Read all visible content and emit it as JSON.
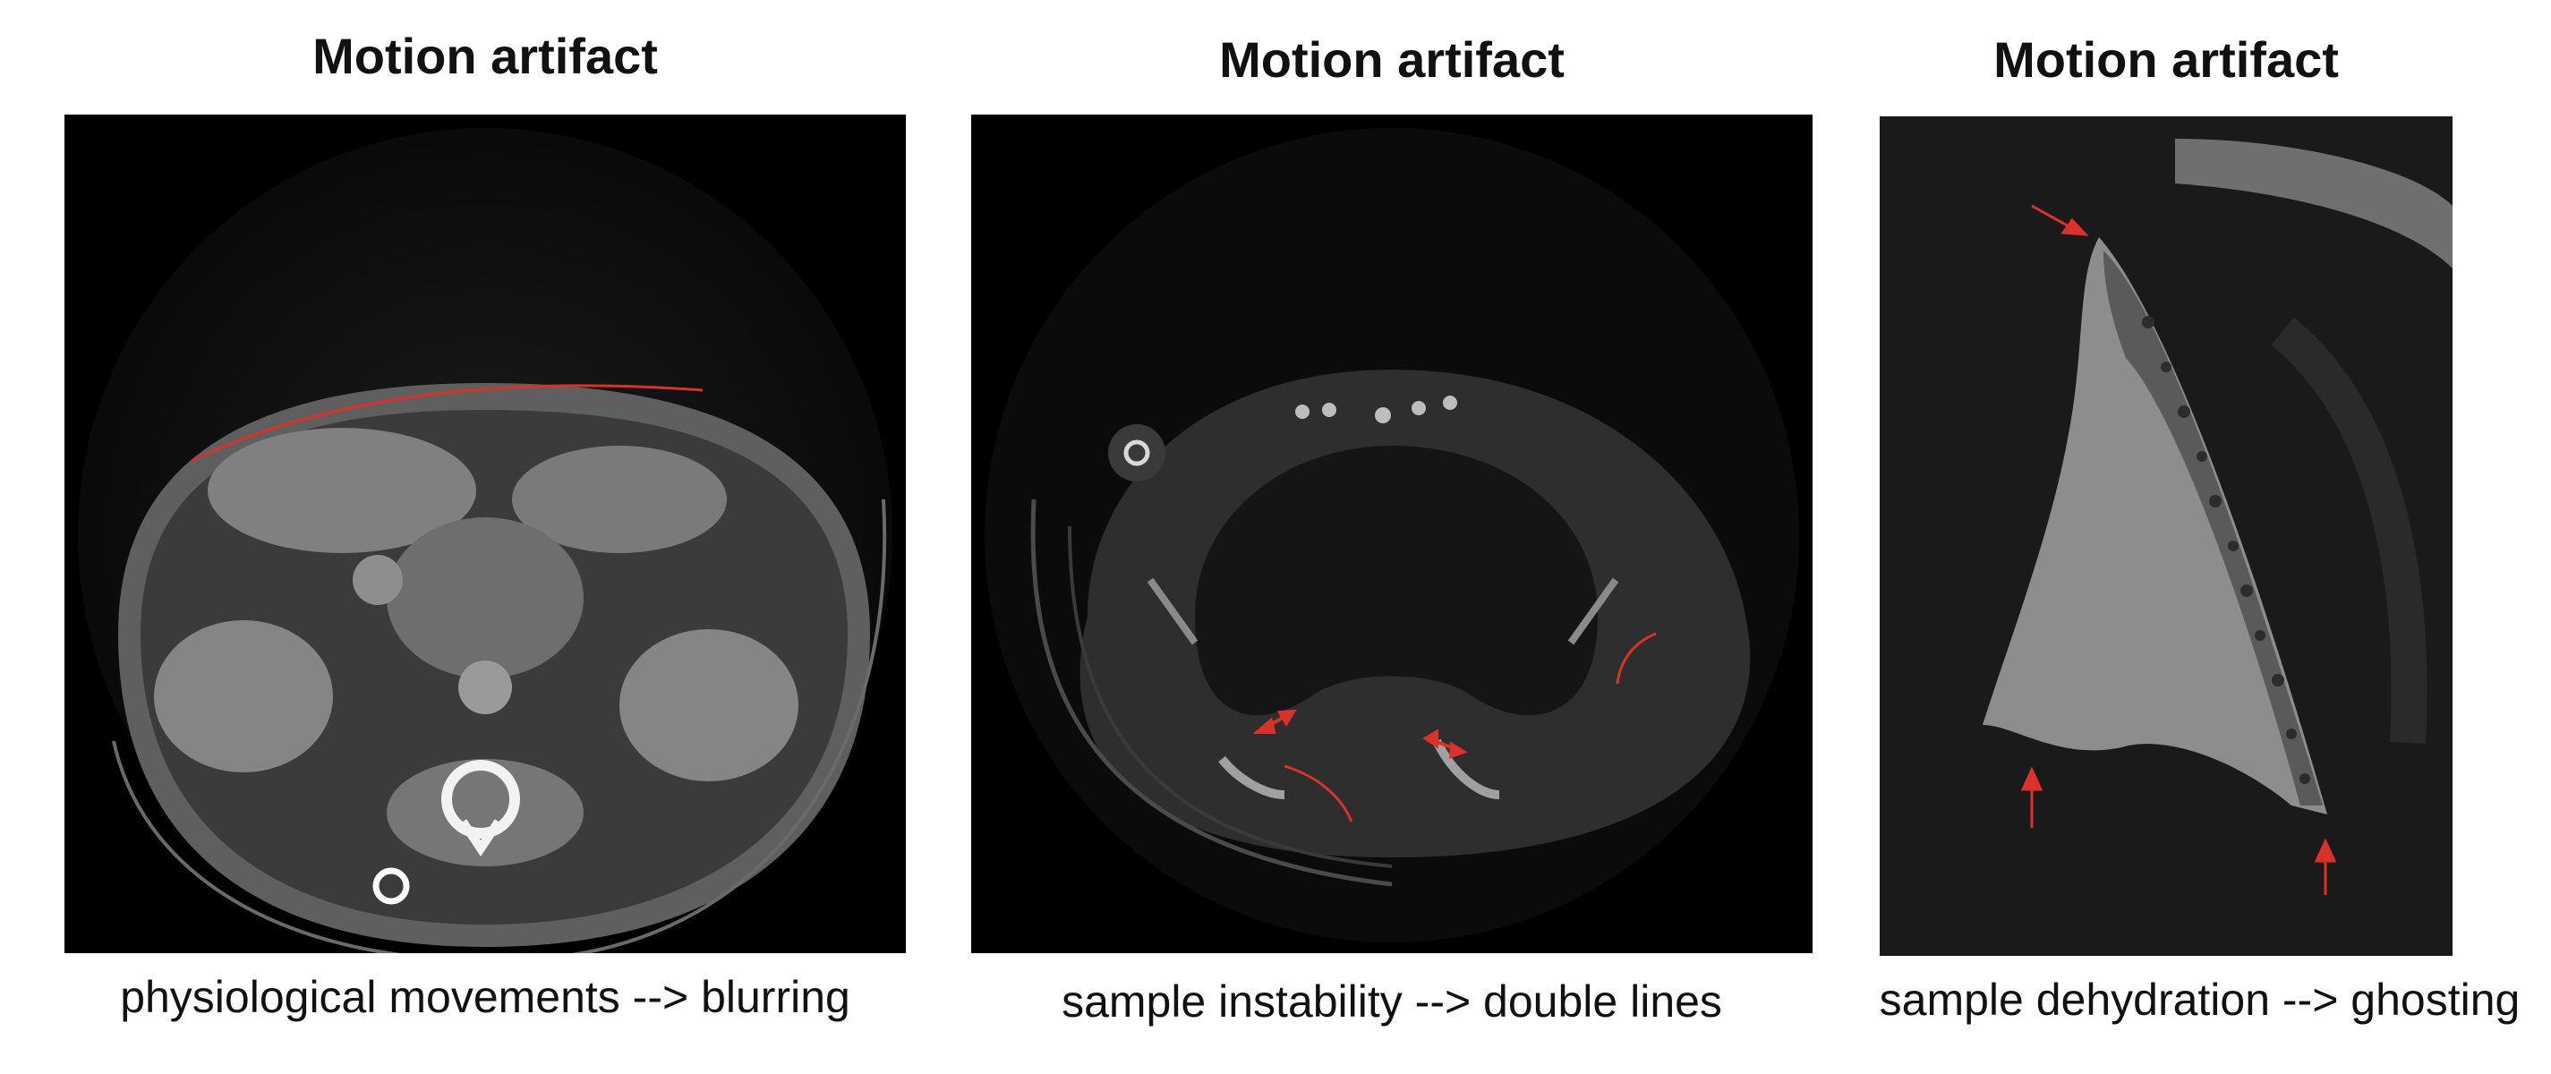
{
  "panels": [
    {
      "title": "Motion artifact",
      "caption": "physiological movements --> blurring",
      "image": "abdominal-ct-slice"
    },
    {
      "title": "Motion artifact",
      "caption": "sample instability --> double lines",
      "image": "thoracic-ct-slice"
    },
    {
      "title": "Motion artifact",
      "caption": "sample dehydration --> ghosting",
      "image": "bone-sample-ct-slice"
    }
  ],
  "colors": {
    "annotation": "#d9322b",
    "background": "#ffffff",
    "scan_background": "#000000"
  }
}
